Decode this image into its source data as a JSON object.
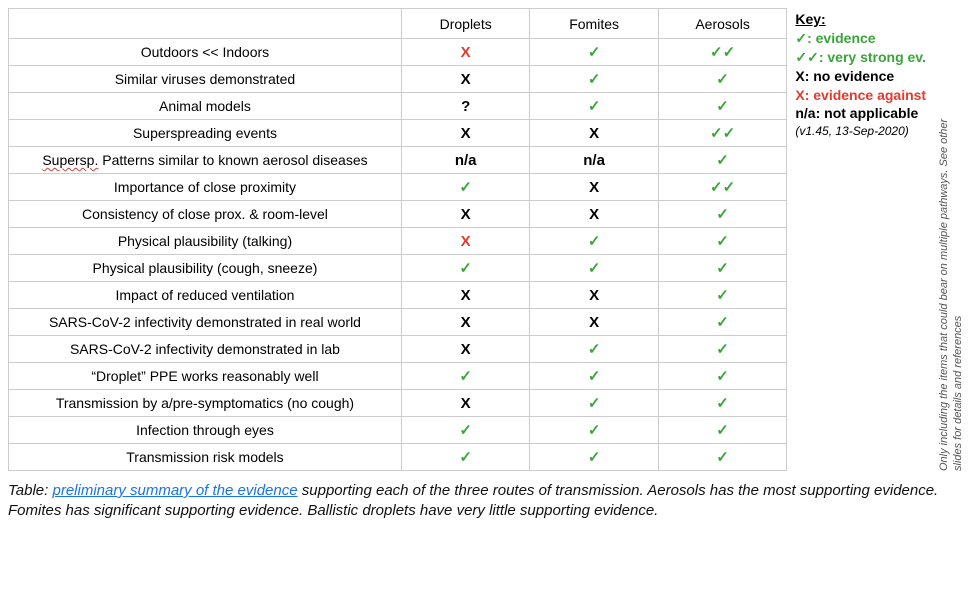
{
  "colors": {
    "border": "#cccccc",
    "text": "#111111",
    "green": "#3aa53a",
    "red": "#e23b2e",
    "black": "#000000",
    "link": "#1a73e8",
    "side_note": "#555555",
    "bg": "#ffffff"
  },
  "symbols": {
    "check": "✓",
    "dblcheck": "✓✓",
    "x_black": "X",
    "x_red": "X",
    "question": "?",
    "na": "n/a"
  },
  "symbol_styles": {
    "check": {
      "color": "#3aa53a",
      "weight": "bold"
    },
    "dblcheck": {
      "color": "#3aa53a",
      "weight": "bold"
    },
    "x_black": {
      "color": "#000000",
      "weight": "bold"
    },
    "x_red": {
      "color": "#e23b2e",
      "weight": "bold"
    },
    "question": {
      "color": "#000000",
      "weight": "bold"
    },
    "na": {
      "color": "#000000",
      "weight": "bold"
    }
  },
  "table": {
    "columns": [
      "Droplets",
      "Fomites",
      "Aerosols"
    ],
    "rows": [
      {
        "label": "Outdoors << Indoors",
        "cells": [
          "x_red",
          "check",
          "dblcheck"
        ]
      },
      {
        "label": "Similar viruses demonstrated",
        "cells": [
          "x_black",
          "check",
          "check"
        ]
      },
      {
        "label": "Animal models",
        "cells": [
          "question",
          "check",
          "check"
        ]
      },
      {
        "label": "Superspreading events",
        "cells": [
          "x_black",
          "x_black",
          "dblcheck"
        ]
      },
      {
        "label": "Supersp. Patterns similar to known aerosol diseases",
        "squiggle_first_word": true,
        "cells": [
          "na",
          "na",
          "check"
        ]
      },
      {
        "label": "Importance of close proximity",
        "cells": [
          "check",
          "x_black",
          "dblcheck"
        ]
      },
      {
        "label": "Consistency of close prox. & room-level",
        "cells": [
          "x_black",
          "x_black",
          "check"
        ]
      },
      {
        "label": "Physical plausibility (talking)",
        "cells": [
          "x_red",
          "check",
          "check"
        ]
      },
      {
        "label": "Physical plausibility (cough, sneeze)",
        "cells": [
          "check",
          "check",
          "check"
        ]
      },
      {
        "label": "Impact of reduced ventilation",
        "cells": [
          "x_black",
          "x_black",
          "check"
        ]
      },
      {
        "label": "SARS-CoV-2 infectivity demonstrated in real world",
        "cells": [
          "x_black",
          "x_black",
          "check"
        ]
      },
      {
        "label": "SARS-CoV-2 infectivity demonstrated in lab",
        "cells": [
          "x_black",
          "check",
          "check"
        ]
      },
      {
        "label": "“Droplet” PPE works reasonably well",
        "cells": [
          "check",
          "check",
          "check"
        ]
      },
      {
        "label": "Transmission by a/pre-symptomatics (no cough)",
        "cells": [
          "x_black",
          "check",
          "check"
        ]
      },
      {
        "label": "Infection through eyes",
        "cells": [
          "check",
          "check",
          "check"
        ]
      },
      {
        "label": "Transmission risk models",
        "cells": [
          "check",
          "check",
          "check"
        ]
      }
    ]
  },
  "key": {
    "header": "Key:",
    "items": [
      {
        "symbol": "✓",
        "label": ": evidence",
        "color": "#3aa53a",
        "allcolor": true
      },
      {
        "symbol": "✓✓",
        "label": ": very strong ev.",
        "color": "#3aa53a",
        "allcolor": true
      },
      {
        "symbol": "X",
        "label": ": no evidence",
        "color": "#000000"
      },
      {
        "symbol": "X",
        "label": ": evidence against",
        "color": "#e23b2e",
        "allcolor": true
      },
      {
        "symbol": "n/a",
        "label": ": not applicable",
        "color": "#000000"
      }
    ],
    "version": "(v1.45, 13-Sep-2020)"
  },
  "side_note": "Only including the items that could bear on multiple pathways. See other slides for details and references",
  "caption": {
    "prefix": "Table: ",
    "link_text": "preliminary summary of the evidence",
    "suffix": " supporting each of the three routes of transmission. Aerosols has the most supporting evidence. Fomites has significant supporting evidence. Ballistic droplets have very little supporting evidence."
  }
}
